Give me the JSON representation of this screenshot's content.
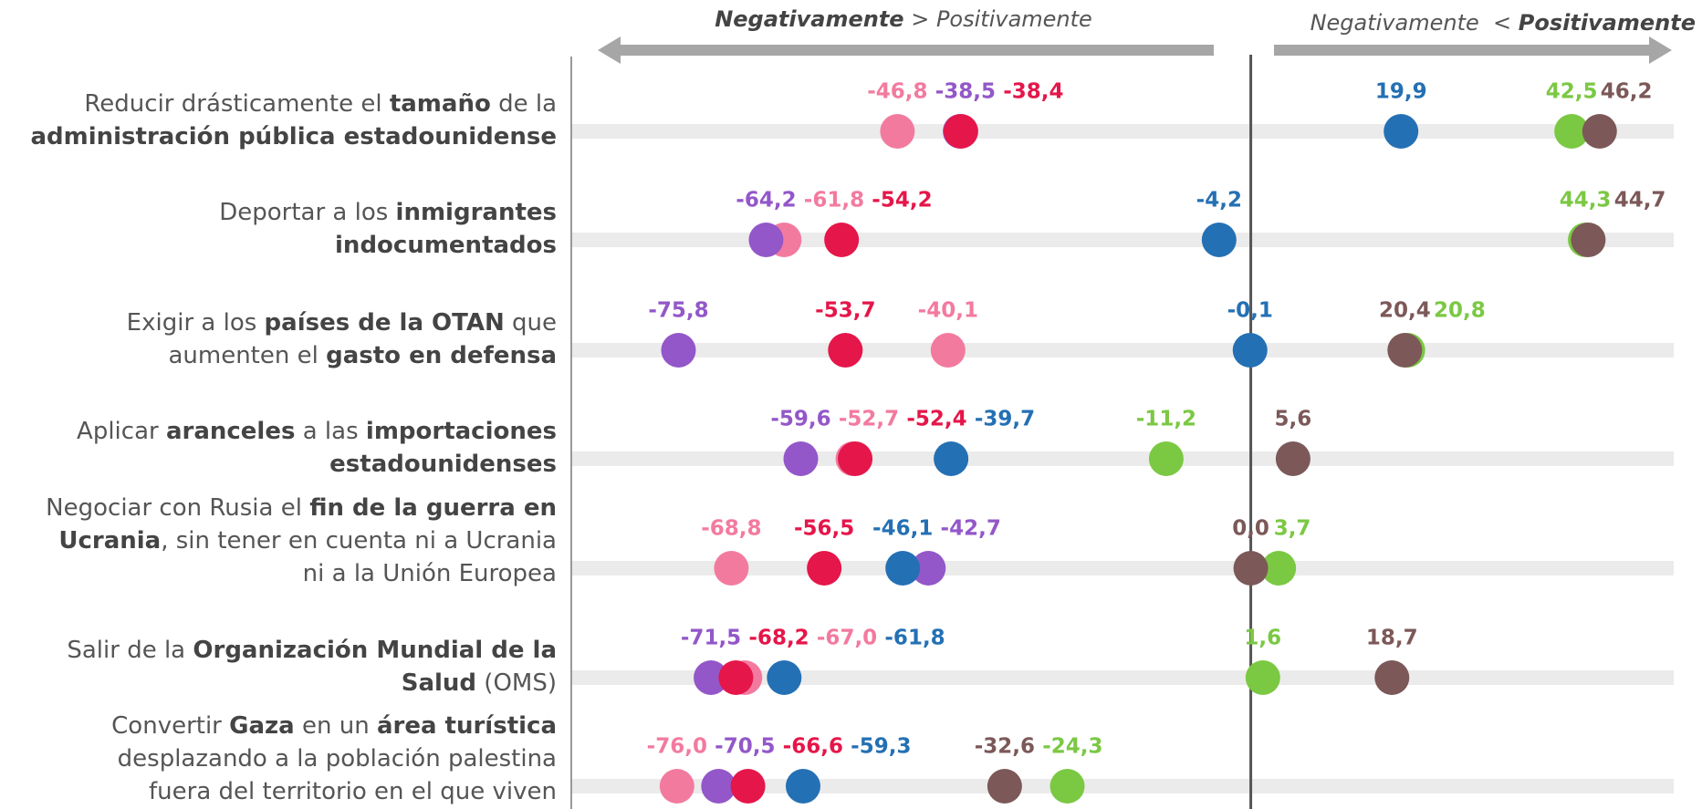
{
  "chart_data": {
    "type": "dot",
    "annotations": [
      [
        {
          "text": "Negativamente",
          "bold": true
        },
        {
          "text": " > Positivamente",
          "bold": false
        }
      ],
      [
        {
          "text": "Negativamente  < ",
          "bold": false
        },
        {
          "text": "Positivamente",
          "bold": true
        }
      ]
    ],
    "categories": [
      [
        [
          {
            "text": "Reducir drásticamente el ",
            "bold": false
          },
          {
            "text": "tamaño",
            "bold": true
          },
          {
            "text": " de la",
            "bold": false
          }
        ],
        [
          {
            "text": "administración pública estadounidense",
            "bold": true
          }
        ]
      ],
      [
        [
          {
            "text": "Deportar a los ",
            "bold": false
          },
          {
            "text": "inmigrantes",
            "bold": true
          }
        ],
        [
          {
            "text": "indocumentados",
            "bold": true
          }
        ]
      ],
      [
        [
          {
            "text": "Exigir a los ",
            "bold": false
          },
          {
            "text": "países de la OTAN",
            "bold": true
          },
          {
            "text": " que",
            "bold": false
          }
        ],
        [
          {
            "text": "aumenten el ",
            "bold": false
          },
          {
            "text": "gasto en defensa",
            "bold": true
          }
        ]
      ],
      [
        [
          {
            "text": "Aplicar ",
            "bold": false
          },
          {
            "text": "aranceles",
            "bold": true
          },
          {
            "text": " a las ",
            "bold": false
          },
          {
            "text": "importaciones",
            "bold": true
          }
        ],
        [
          {
            "text": "estadounidenses",
            "bold": true
          }
        ]
      ],
      [
        [
          {
            "text": "Negociar con Rusia el ",
            "bold": false
          },
          {
            "text": "fin de la guerra en",
            "bold": true
          }
        ],
        [
          {
            "text": "Ucrania",
            "bold": true
          },
          {
            "text": ", sin tener en cuenta ni a Ucrania",
            "bold": false
          }
        ],
        [
          {
            "text": "ni a la Unión Europea",
            "bold": false
          }
        ]
      ],
      [
        [
          {
            "text": "Salir de la ",
            "bold": false
          },
          {
            "text": "Organización Mundial de la",
            "bold": true
          }
        ],
        [
          {
            "text": "Salud",
            "bold": true
          },
          {
            "text": " (OMS)",
            "bold": false
          }
        ]
      ],
      [
        [
          {
            "text": "Convertir ",
            "bold": false
          },
          {
            "text": "Gaza",
            "bold": true
          },
          {
            "text": " en un ",
            "bold": false
          },
          {
            "text": "área turística",
            "bold": true
          }
        ],
        [
          {
            "text": "desplazando a la población palestina",
            "bold": false
          }
        ],
        [
          {
            "text": "fuera del territorio en el que viven",
            "bold": false
          }
        ]
      ]
    ],
    "series": [
      {
        "color": "#f37a9f",
        "values": [
          -46.8,
          -61.8,
          -40.1,
          -52.7,
          -68.8,
          -67.0,
          -76.0
        ],
        "value_labels": [
          "-46,8",
          "-61,8",
          "-40,1",
          "-52,7",
          "-68,8",
          "-67,0",
          "-76,0"
        ]
      },
      {
        "color": "#9357c9",
        "values": [
          -38.5,
          -64.2,
          -75.8,
          -59.6,
          -42.7,
          -71.5,
          -70.5
        ],
        "value_labels": [
          "-38,5",
          "-64,2",
          "-75,8",
          "-59,6",
          "-42,7",
          "-71,5",
          "-70,5"
        ]
      },
      {
        "color": "#e5164a",
        "values": [
          -38.4,
          -54.2,
          -53.7,
          -52.4,
          -56.5,
          -68.2,
          -66.6
        ],
        "value_labels": [
          "-38,4",
          "-54,2",
          "-53,7",
          "-52,4",
          "-56,5",
          "-68,2",
          "-66,6"
        ]
      },
      {
        "color": "#2470b4",
        "values": [
          19.9,
          -4.2,
          -0.1,
          -39.7,
          -46.1,
          -61.8,
          -59.3
        ],
        "value_labels": [
          "19,9",
          "-4,2",
          "-0,1",
          "-39,7",
          "-46,1",
          "-61,8",
          "-59,3"
        ]
      },
      {
        "color": "#7bc843",
        "values": [
          42.5,
          44.3,
          20.8,
          -11.2,
          3.7,
          1.6,
          -24.3
        ],
        "value_labels": [
          "42,5",
          "44,3",
          "20,8",
          "-11,2",
          "3,7",
          "1,6",
          "-24,3"
        ]
      },
      {
        "color": "#7c5858",
        "values": [
          46.2,
          44.7,
          20.4,
          5.6,
          0.0,
          18.7,
          -32.6
        ],
        "value_labels": [
          "46,2",
          "44,7",
          "20,4",
          "5,6",
          "0,0",
          "18,7",
          "-32,6"
        ]
      }
    ],
    "xlim": [
      -90,
      56.5
    ]
  }
}
